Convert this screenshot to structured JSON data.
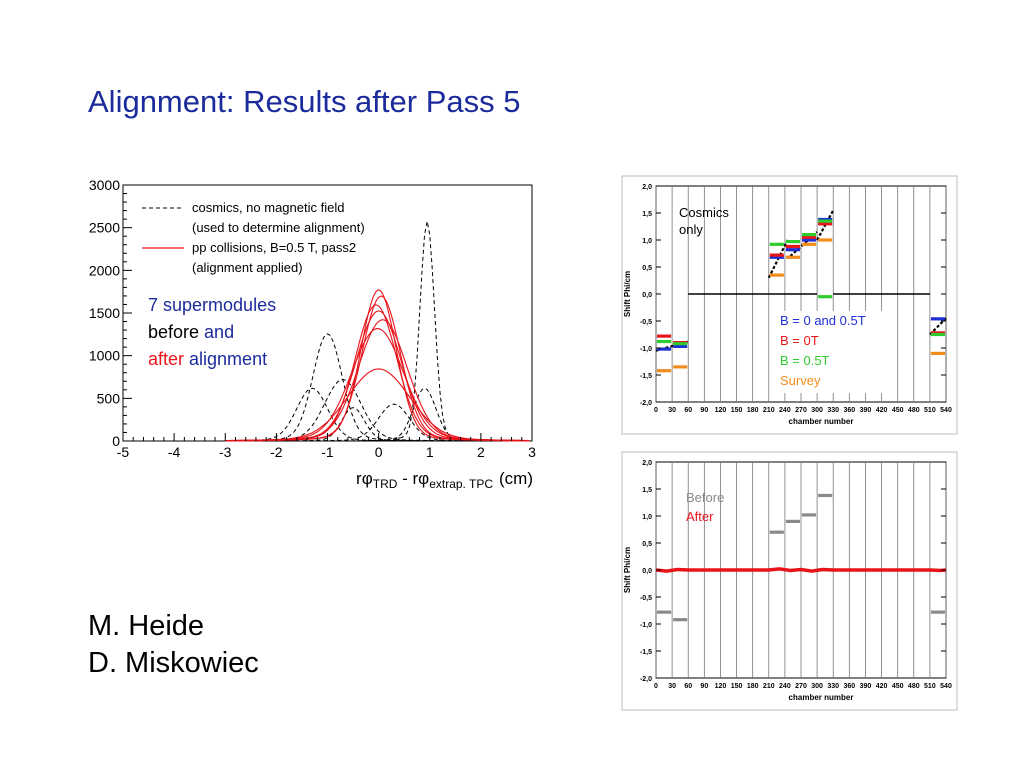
{
  "slide": {
    "title": "Alignment: Results after Pass 5",
    "authors": [
      "M. Heide",
      "D. Miskowiec"
    ]
  },
  "colors": {
    "title": "#1c2b9c",
    "pass2": "#e8141b",
    "b0_05": "#1f2fd6",
    "b0": "#e8141b",
    "b05": "#2ecc2e",
    "survey": "#f28c1c",
    "before": "#8a8a8a"
  },
  "chart_data": [
    {
      "type": "line",
      "xlim": [
        -5,
        3
      ],
      "ylim": [
        0,
        3000
      ],
      "xticks": [
        "-5",
        "-4",
        "-3",
        "-2",
        "-1",
        "0",
        "1",
        "2",
        "3"
      ],
      "yticks": [
        "0",
        "500",
        "1000",
        "1500",
        "2000",
        "2500",
        "3000"
      ],
      "xlabel": {
        "main": "rφ",
        "sub1": "TRD",
        "mid": " - rφ",
        "sub2": "extrap. TPC",
        "unit": "(cm)"
      },
      "legend": [
        {
          "line1": "cosmics, no magnetic field",
          "line2": "(used to determine alignment)",
          "style": "dashed-black"
        },
        {
          "line1": "pp collisions, B=0.5 T, pass2",
          "line2": "(alignment applied)",
          "style": "solid-red"
        }
      ],
      "annotation": {
        "l1a": "7 supermodules",
        "l2a": "before ",
        "l2b": "and",
        "l3a": "after ",
        "l3b": "alignment"
      },
      "series": [
        {
          "style": "dashed",
          "peak_x": -1.0,
          "peak_y": 1220,
          "sigma": 0.28
        },
        {
          "style": "dashed",
          "peak_x": 0.95,
          "peak_y": 2500,
          "sigma": 0.14
        },
        {
          "style": "dashed",
          "peak_x": 0.9,
          "peak_y": 600,
          "sigma": 0.22
        },
        {
          "style": "dashed",
          "peak_x": -1.3,
          "peak_y": 600,
          "sigma": 0.3
        },
        {
          "style": "dashed",
          "peak_x": -0.5,
          "peak_y": 380,
          "sigma": 0.22
        },
        {
          "style": "dashed",
          "peak_x": 0.3,
          "peak_y": 420,
          "sigma": 0.3
        },
        {
          "style": "dashed",
          "peak_x": -0.7,
          "peak_y": 700,
          "sigma": 0.35
        },
        {
          "style": "solid",
          "peak_x": 0.0,
          "peak_y": 1720,
          "sigma": 0.34
        },
        {
          "style": "solid",
          "peak_x": 0.05,
          "peak_y": 1650,
          "sigma": 0.37
        },
        {
          "style": "solid",
          "peak_x": -0.05,
          "peak_y": 1550,
          "sigma": 0.4
        },
        {
          "style": "solid",
          "peak_x": 0.0,
          "peak_y": 1480,
          "sigma": 0.44
        },
        {
          "style": "solid",
          "peak_x": 0.08,
          "peak_y": 1380,
          "sigma": 0.47
        },
        {
          "style": "solid",
          "peak_x": -0.02,
          "peak_y": 1280,
          "sigma": 0.5
        },
        {
          "style": "solid",
          "peak_x": 0.0,
          "peak_y": 820,
          "sigma": 0.6
        }
      ]
    },
    {
      "type": "line",
      "ylabel": "Shift Phi/cm",
      "xlabel": "chamber number",
      "xlim": [
        0,
        540
      ],
      "ylim": [
        -2.0,
        2.0
      ],
      "xticks": [
        "0",
        "30",
        "60",
        "90",
        "120",
        "150",
        "180",
        "210",
        "240",
        "270",
        "300",
        "330",
        "360",
        "390",
        "420",
        "450",
        "480",
        "510",
        "540"
      ],
      "yticks": [
        "-2,0",
        "-1,5",
        "-1,0",
        "-0,5",
        "0,0",
        "0,5",
        "1,0",
        "1,5",
        "2,0"
      ],
      "annotation": "Cosmics\nonly",
      "legend": [
        {
          "label": "B = 0 and 0.5T",
          "color": "#1f2fd6"
        },
        {
          "label": "B = 0T",
          "color": "#e8141b"
        },
        {
          "label": "B = 0.5T",
          "color": "#2ecc2e"
        },
        {
          "label": "Survey",
          "color": "#f28c1c"
        }
      ],
      "series": [
        {
          "name": "B = 0 and 0.5T",
          "color": "#1f2fd6",
          "segments": [
            [
              0,
              30,
              -1.02
            ],
            [
              30,
              60,
              -0.97
            ],
            [
              210,
              240,
              0.68
            ],
            [
              240,
              270,
              0.82
            ],
            [
              270,
              300,
              1.0
            ],
            [
              300,
              330,
              1.38
            ],
            [
              510,
              540,
              -0.46
            ]
          ]
        },
        {
          "name": "B = 0T",
          "color": "#e8141b",
          "segments": [
            [
              0,
              30,
              -0.78
            ],
            [
              30,
              60,
              -0.9
            ],
            [
              210,
              240,
              0.72
            ],
            [
              240,
              270,
              0.88
            ],
            [
              270,
              300,
              1.05
            ],
            [
              300,
              330,
              1.3
            ],
            [
              510,
              540,
              -0.72
            ]
          ]
        },
        {
          "name": "B = 0.5T",
          "color": "#2ecc2e",
          "segments": [
            [
              0,
              30,
              -0.88
            ],
            [
              30,
              60,
              -0.92
            ],
            [
              210,
              240,
              0.92
            ],
            [
              240,
              270,
              0.97
            ],
            [
              270,
              300,
              1.1
            ],
            [
              300,
              330,
              1.35
            ],
            [
              300,
              330,
              -0.05
            ],
            [
              510,
              540,
              -0.75
            ]
          ]
        },
        {
          "name": "Survey",
          "color": "#f28c1c",
          "segments": [
            [
              0,
              30,
              -1.42
            ],
            [
              30,
              60,
              -1.35
            ],
            [
              210,
              240,
              0.35
            ],
            [
              240,
              270,
              0.68
            ],
            [
              270,
              300,
              0.92
            ],
            [
              300,
              330,
              1.0
            ],
            [
              510,
              540,
              -1.1
            ]
          ]
        }
      ],
      "baseline": [
        [
          60,
          210,
          0.0
        ],
        [
          330,
          510,
          0.0
        ],
        [
          210,
          300,
          0.0
        ]
      ]
    },
    {
      "type": "line",
      "ylabel": "Shift Phi/cm",
      "xlabel": "chamber number",
      "xlim": [
        0,
        540
      ],
      "ylim": [
        -2.0,
        2.0
      ],
      "xticks": [
        "0",
        "30",
        "60",
        "90",
        "120",
        "150",
        "180",
        "210",
        "240",
        "270",
        "300",
        "330",
        "360",
        "390",
        "420",
        "450",
        "480",
        "510",
        "540"
      ],
      "yticks": [
        "-2,0",
        "-1,5",
        "-1,0",
        "-0,5",
        "0,0",
        "0,5",
        "1,0",
        "1,5",
        "2,0"
      ],
      "legend": [
        {
          "label": "Before",
          "color": "#8a8a8a"
        },
        {
          "label": "After",
          "color": "#e8141b"
        }
      ],
      "series": [
        {
          "name": "Before",
          "color": "#8a8a8a",
          "segments": [
            [
              0,
              30,
              -0.78
            ],
            [
              30,
              60,
              -0.92
            ],
            [
              210,
              240,
              0.7
            ],
            [
              240,
              270,
              0.9
            ],
            [
              270,
              300,
              1.02
            ],
            [
              300,
              330,
              1.38
            ],
            [
              510,
              540,
              -0.78
            ]
          ]
        },
        {
          "name": "After",
          "color": "#e8141b",
          "points": [
            [
              0,
              0.0
            ],
            [
              20,
              -0.02
            ],
            [
              40,
              0.01
            ],
            [
              60,
              0.0
            ],
            [
              90,
              0.0
            ],
            [
              120,
              0.0
            ],
            [
              150,
              0.0
            ],
            [
              180,
              0.0
            ],
            [
              210,
              0.0
            ],
            [
              230,
              0.02
            ],
            [
              250,
              -0.01
            ],
            [
              270,
              0.01
            ],
            [
              290,
              -0.02
            ],
            [
              310,
              0.01
            ],
            [
              330,
              0.0
            ],
            [
              360,
              0.0
            ],
            [
              390,
              0.0
            ],
            [
              420,
              0.0
            ],
            [
              450,
              0.0
            ],
            [
              480,
              0.0
            ],
            [
              510,
              0.0
            ],
            [
              530,
              -0.01
            ],
            [
              540,
              0.0
            ]
          ]
        }
      ]
    }
  ]
}
